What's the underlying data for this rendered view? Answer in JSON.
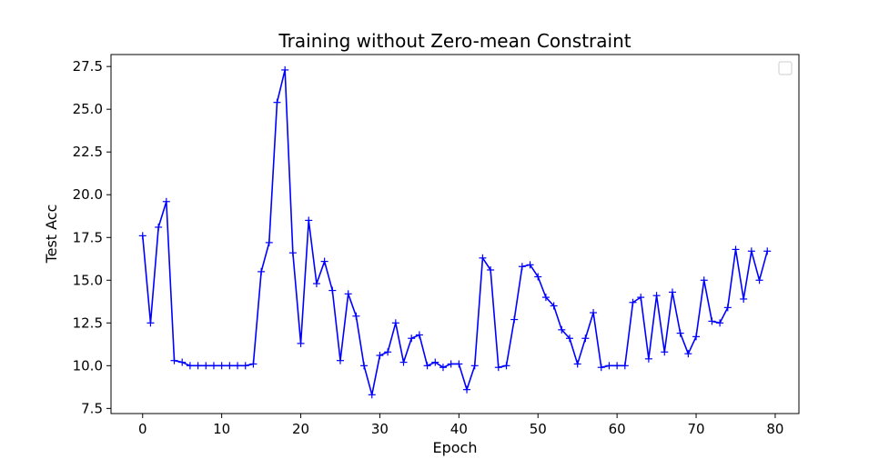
{
  "chart_data": {
    "type": "line",
    "title": "Training without Zero-mean Constraint",
    "xlabel": "Epoch",
    "ylabel": "Test Acc",
    "xlim": [
      -4,
      83
    ],
    "ylim": [
      7.2,
      28.2
    ],
    "xticks": [
      0,
      10,
      20,
      30,
      40,
      50,
      60,
      70,
      80
    ],
    "yticks": [
      7.5,
      10.0,
      12.5,
      15.0,
      17.5,
      20.0,
      22.5,
      25.0,
      27.5
    ],
    "ytick_labels": [
      "7.5",
      "10.0",
      "12.5",
      "15.0",
      "17.5",
      "20.0",
      "22.5",
      "25.0",
      "27.5"
    ],
    "grid": false,
    "legend": "top-right (empty)",
    "colors": {
      "line": "#0000ff",
      "axes": "#000000",
      "background": "#ffffff"
    },
    "marker": "plus",
    "series": [
      {
        "x": [
          0,
          1,
          2,
          3,
          4,
          5,
          6,
          7,
          8,
          9,
          10,
          11,
          12,
          13,
          14,
          15,
          16,
          17,
          18,
          19,
          20,
          21,
          22,
          23,
          24,
          25,
          26,
          27,
          28,
          29,
          30,
          31,
          32,
          33,
          34,
          35,
          36,
          37,
          38,
          39,
          40,
          41,
          42,
          43,
          44,
          45,
          46,
          47,
          48,
          49,
          50,
          51,
          52,
          53,
          54,
          55,
          56,
          57,
          58,
          59,
          60,
          61,
          62,
          63,
          64,
          65,
          66,
          67,
          68,
          69,
          70,
          71,
          72,
          73,
          74,
          75,
          76,
          77,
          78,
          79
        ],
        "values": [
          17.6,
          12.5,
          18.1,
          19.6,
          10.3,
          10.2,
          10.0,
          10.0,
          10.0,
          10.0,
          10.0,
          10.0,
          10.0,
          10.0,
          10.1,
          15.5,
          17.2,
          25.4,
          27.3,
          16.6,
          11.3,
          18.5,
          14.8,
          16.1,
          14.4,
          10.3,
          14.2,
          12.9,
          10.0,
          8.3,
          10.6,
          10.8,
          12.5,
          10.2,
          11.6,
          11.8,
          10.0,
          10.2,
          9.9,
          10.1,
          10.1,
          8.6,
          10.0,
          16.3,
          15.6,
          9.9,
          10.0,
          12.7,
          15.8,
          15.9,
          15.2,
          14.0,
          13.5,
          12.1,
          11.6,
          10.1,
          11.6,
          13.1,
          9.9,
          10.0,
          10.0,
          10.0,
          13.7,
          14.0,
          10.4,
          14.1,
          10.8,
          14.3,
          11.9,
          10.7,
          11.7,
          15.0,
          12.6,
          12.5,
          13.4,
          16.8,
          13.9,
          16.7,
          15.0,
          16.7
        ]
      }
    ]
  }
}
